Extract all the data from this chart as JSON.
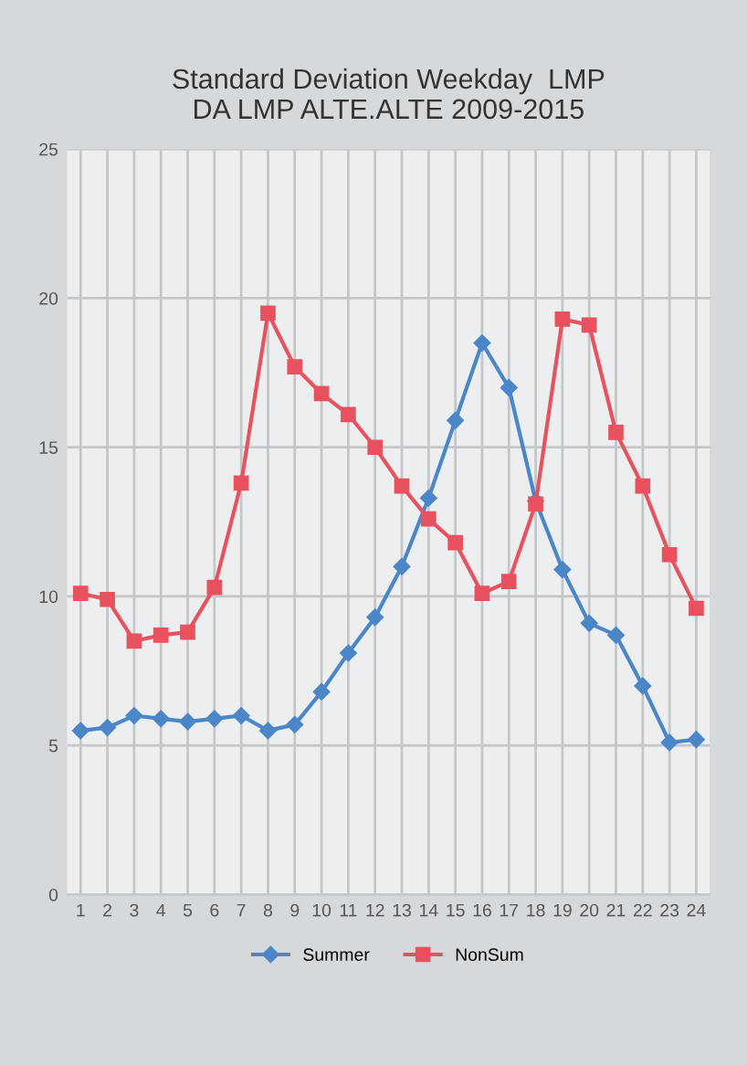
{
  "chart_data": {
    "type": "line",
    "title": "Standard Deviation Weekday  LMP\nDA LMP ALTE.ALTE 2009-2015",
    "categories": [
      "1",
      "2",
      "3",
      "4",
      "5",
      "6",
      "7",
      "8",
      "9",
      "10",
      "11",
      "12",
      "13",
      "14",
      "15",
      "16",
      "17",
      "18",
      "19",
      "20",
      "21",
      "22",
      "23",
      "24"
    ],
    "series": [
      {
        "name": "Summer",
        "color": "#4a86c8",
        "marker": "diamond",
        "values": [
          5.5,
          5.6,
          6.0,
          5.9,
          5.8,
          5.9,
          6.0,
          5.5,
          5.7,
          6.8,
          8.1,
          9.3,
          11.0,
          13.3,
          15.9,
          18.5,
          17.0,
          13.2,
          10.9,
          9.1,
          8.7,
          7.0,
          5.1,
          5.2
        ]
      },
      {
        "name": "NonSum",
        "color": "#e8515e",
        "marker": "square",
        "values": [
          10.1,
          9.9,
          8.5,
          8.7,
          8.8,
          10.3,
          13.8,
          19.5,
          17.7,
          16.8,
          16.1,
          15.0,
          13.7,
          12.6,
          11.8,
          10.1,
          10.5,
          13.1,
          19.3,
          19.1,
          15.5,
          13.7,
          11.4,
          9.6
        ]
      }
    ],
    "ylim": [
      0,
      25
    ],
    "yticks": [
      0,
      5,
      10,
      15,
      20,
      25
    ],
    "grid": true,
    "legend": "bottom"
  }
}
